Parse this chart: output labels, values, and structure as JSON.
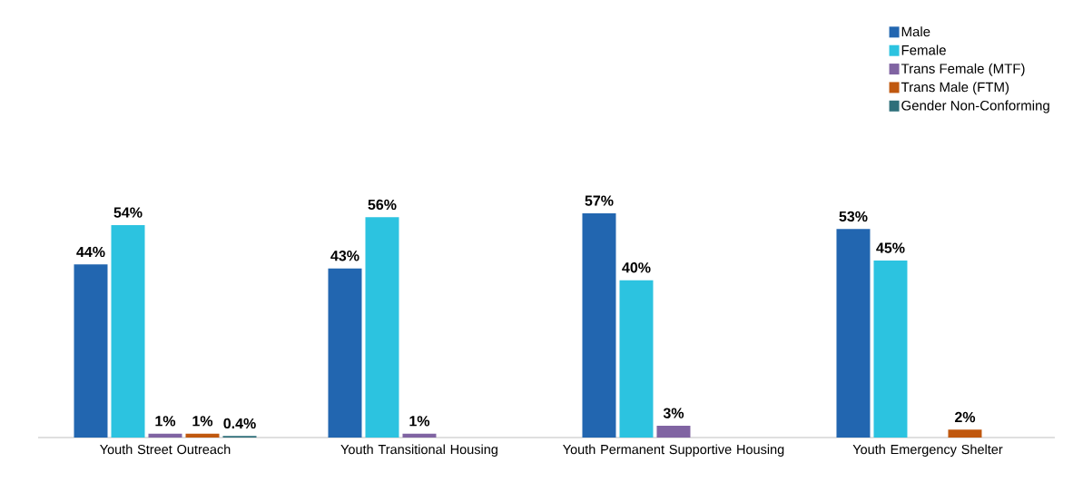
{
  "chart_data": {
    "type": "bar",
    "categories": [
      "Youth Street Outreach",
      "Youth Transitional Housing",
      "Youth Permanent Supportive Housing",
      "Youth Emergency Shelter"
    ],
    "series": [
      {
        "name": "Male",
        "color": "#2266b0",
        "values": [
          44,
          43,
          57,
          53
        ],
        "value_labels": [
          "44%",
          "43%",
          "57%",
          "53%"
        ]
      },
      {
        "name": "Female",
        "color": "#2cc3e0",
        "values": [
          54,
          56,
          40,
          45
        ],
        "value_labels": [
          "54%",
          "56%",
          "40%",
          "45%"
        ]
      },
      {
        "name": "Trans Female (MTF)",
        "color": "#8064a2",
        "values": [
          1,
          1,
          3,
          null
        ],
        "value_labels": [
          "1%",
          "1%",
          "3%",
          null
        ]
      },
      {
        "name": "Trans Male (FTM)",
        "color": "#c0580f",
        "values": [
          1,
          null,
          null,
          2
        ],
        "value_labels": [
          "1%",
          null,
          null,
          "2%"
        ]
      },
      {
        "name": "Gender Non-Conforming",
        "color": "#2e6f7a",
        "values": [
          0.4,
          null,
          null,
          null
        ],
        "value_labels": [
          "0.4%",
          null,
          null,
          null
        ]
      }
    ],
    "legend": "top right"
  }
}
